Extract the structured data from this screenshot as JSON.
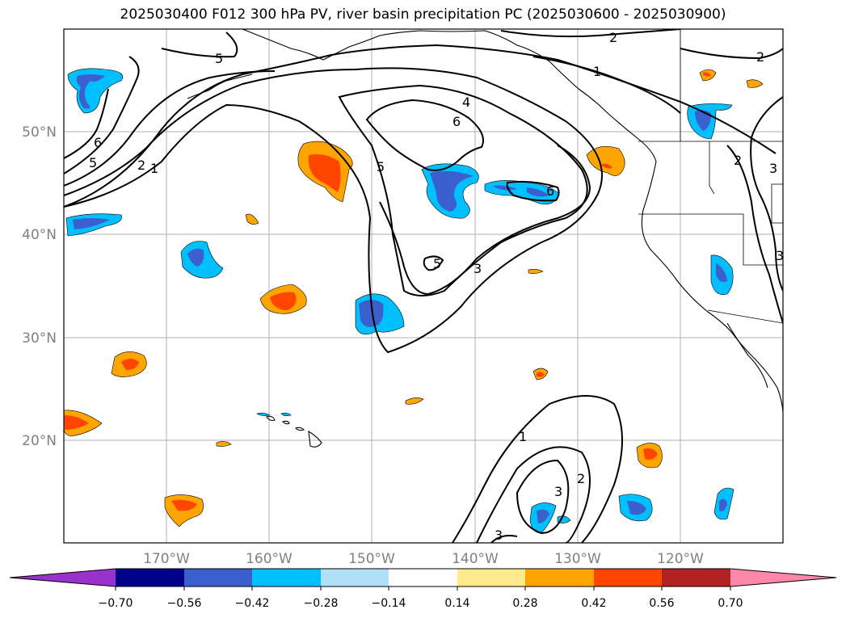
{
  "title": "2025030400 F012 300 hPa PV, river basin precipitation PC (2025030600 - 2025030900)",
  "map": {
    "lon_labels": [
      "170°W",
      "160°W",
      "150°W",
      "140°W",
      "130°W",
      "120°W"
    ],
    "lat_labels": [
      "50°N",
      "40°N",
      "30°N",
      "20°N"
    ],
    "contour_labels": [
      "5",
      "6",
      "5",
      "2",
      "1",
      "4",
      "6",
      "5",
      "6",
      "5",
      "3",
      "2",
      "1",
      "2",
      "2",
      "3",
      "3",
      "1",
      "2",
      "3",
      "3"
    ]
  },
  "colorbar": {
    "colors": [
      "#9932cc",
      "#00008b",
      "#3b5fcd",
      "#00bfff",
      "#b0e0f8",
      "#ffffff",
      "#ffeb8c",
      "#ffa500",
      "#ff4500",
      "#b22222",
      "#ff88aa"
    ],
    "tick_labels": [
      "−0.70",
      "−0.56",
      "−0.42",
      "−0.28",
      "−0.14",
      "0.14",
      "0.28",
      "0.42",
      "0.56",
      "0.70"
    ]
  }
}
